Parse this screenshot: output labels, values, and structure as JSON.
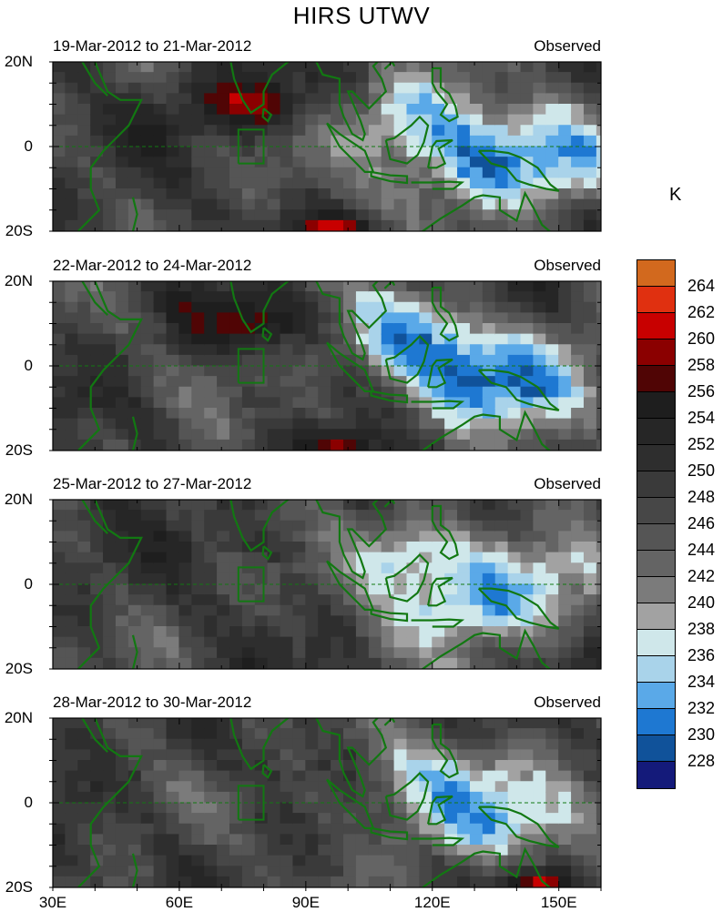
{
  "title": "HIRS UTWV",
  "unit_label": "K",
  "panels": [
    {
      "date_range": "19-Mar-2012 to 21-Mar-2012",
      "label": "Observed"
    },
    {
      "date_range": "22-Mar-2012 to 24-Mar-2012",
      "label": "Observed"
    },
    {
      "date_range": "25-Mar-2012 to 27-Mar-2012",
      "label": "Observed"
    },
    {
      "date_range": "28-Mar-2012 to 30-Mar-2012",
      "label": "Observed"
    }
  ],
  "lat_labels": [
    "20N",
    "0",
    "20S"
  ],
  "lon_labels": [
    "30E",
    "60E",
    "90E",
    "120E",
    "150E"
  ],
  "colorbar": {
    "labels": [
      "264",
      "262",
      "260",
      "258",
      "256",
      "254",
      "252",
      "250",
      "248",
      "246",
      "244",
      "242",
      "240",
      "238",
      "236",
      "234",
      "232",
      "230",
      "228"
    ],
    "colors": [
      "#d2691e",
      "#e03010",
      "#c80000",
      "#8b0000",
      "#500505",
      "#1e1e1e",
      "#262626",
      "#2e2e2e",
      "#3a3a3a",
      "#474747",
      "#555555",
      "#646464",
      "#7b7b7b",
      "#a2a2a2",
      "#cfe7ea",
      "#a9d3ea",
      "#5aa9e8",
      "#1e78d2",
      "#10529a",
      "#141a7a"
    ]
  },
  "map": {
    "lon_range": [
      30,
      160
    ],
    "lat_range": [
      -20,
      20
    ],
    "coastline_color": "#127812"
  }
}
